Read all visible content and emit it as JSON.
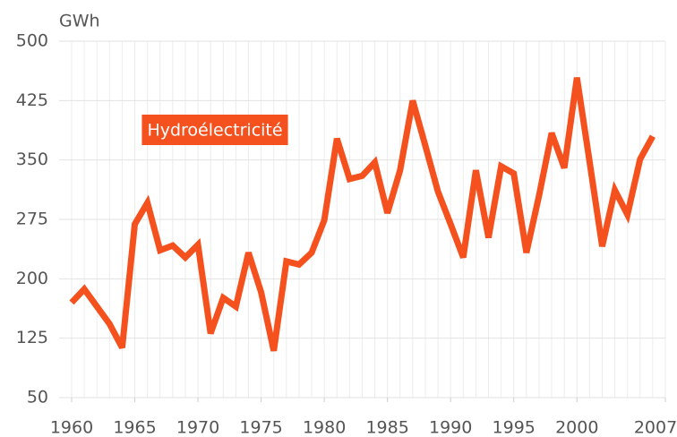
{
  "chart_data": {
    "type": "line",
    "y_label": "GWh",
    "x": [
      1960,
      1961,
      1962,
      1963,
      1964,
      1965,
      1966,
      1967,
      1968,
      1969,
      1970,
      1971,
      1972,
      1973,
      1974,
      1975,
      1976,
      1977,
      1978,
      1979,
      1980,
      1981,
      1982,
      1983,
      1984,
      1985,
      1986,
      1987,
      1988,
      1989,
      1990,
      1991,
      1992,
      1993,
      1994,
      1995,
      1996,
      1997,
      1998,
      1999,
      2000,
      2001,
      2002,
      2003,
      2004,
      2005,
      2006
    ],
    "series": [
      {
        "name": "Hydroélectricité",
        "color": "#f4511e",
        "values": [
          170,
          187,
          165,
          143,
          113,
          269,
          296,
          236,
          242,
          227,
          243,
          131,
          176,
          165,
          233,
          183,
          109,
          222,
          218,
          233,
          274,
          377,
          326,
          330,
          347,
          283,
          337,
          425,
          368,
          310,
          269,
          227,
          337,
          252,
          342,
          333,
          233,
          305,
          384,
          340,
          454,
          348,
          241,
          312,
          281,
          351,
          380
        ]
      }
    ],
    "xlim": [
      1960,
      2007
    ],
    "xticks": [
      1960,
      1965,
      1970,
      1975,
      1980,
      1985,
      1990,
      1995,
      2000,
      2007
    ],
    "ylim": [
      50,
      500
    ],
    "yticks": [
      50,
      125,
      200,
      275,
      350,
      425,
      500
    ],
    "grid": true
  }
}
